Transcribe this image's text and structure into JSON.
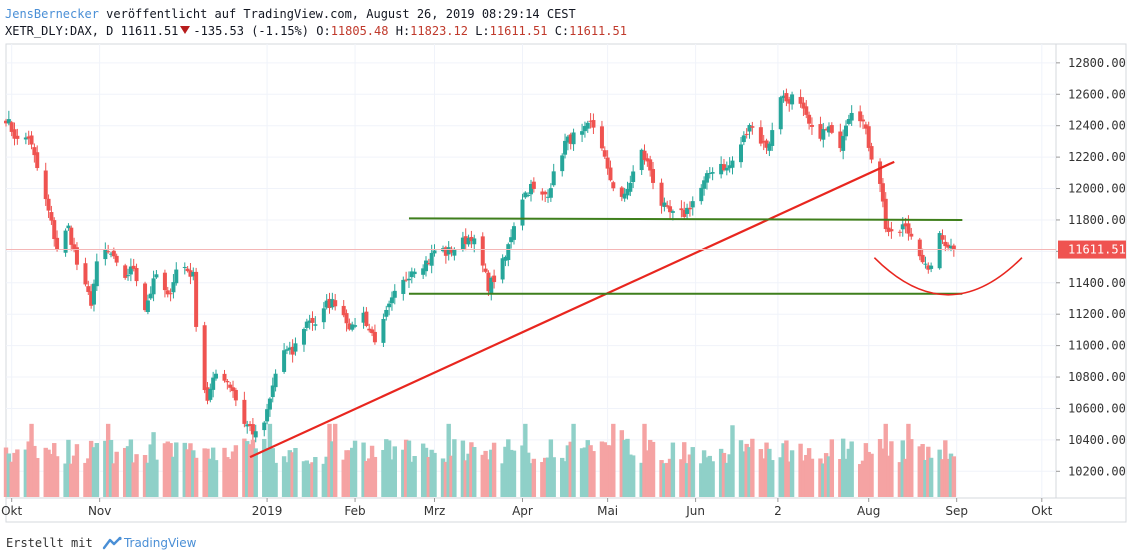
{
  "header": {
    "author": "JensBernecker",
    "publish_text": "veröffentlicht auf TradingView.com, August 26, 2019 08:29:14 CEST",
    "symbol": "XETR_DLY:DAX, D",
    "last": "11611.51",
    "change": "-135.53 (-1.15%)",
    "o_label": "O:",
    "o_value": "11805.48",
    "h_label": "H:",
    "h_value": "11823.12",
    "l_label": "L:",
    "l_value": "11611.51",
    "c_label": "C:",
    "c_value": "11611.51"
  },
  "footer": {
    "created_with": "Erstellt mit",
    "brand": "TradingView"
  },
  "colors": {
    "up": "#26a69a",
    "down": "#ef5350",
    "vol_up": "#8fd0c8",
    "vol_down": "#f5a3a3",
    "trend": "#e8261f",
    "support": "#3f7f1c",
    "price_line": "#f4b6b6",
    "price_tag": "#ef5350"
  },
  "chart_data": {
    "type": "candlestick",
    "symbol": "XETR_DLY:DAX",
    "interval": "D",
    "y_ticks": [
      "12800.00",
      "12600.00",
      "12400.00",
      "12200.00",
      "12000.00",
      "11800.00",
      "11600.00",
      "11400.00",
      "11200.00",
      "11000.00",
      "10800.00",
      "10600.00",
      "10400.00",
      "10200.00"
    ],
    "y_tick_values": [
      12800,
      12600,
      12400,
      12200,
      12000,
      11800,
      11600,
      11400,
      11200,
      11000,
      10800,
      10600,
      10400,
      10200
    ],
    "ylim": [
      10030,
      12920
    ],
    "x_labels": [
      "Okt",
      "Nov",
      "2019",
      "Feb",
      "Mrz",
      "Apr",
      "Mai",
      "Jun",
      "2",
      "Aug",
      "Sep",
      "Okt"
    ],
    "x_label_days": [
      2,
      33,
      92,
      123,
      151,
      182,
      212,
      243,
      272,
      304,
      335,
      365
    ],
    "xlim": [
      0,
      370
    ],
    "last_price": 11611.51,
    "last_price_label": "11611.51",
    "anchors": [
      [
        0,
        12450
      ],
      [
        4,
        12300
      ],
      [
        8,
        12330
      ],
      [
        12,
        12060
      ],
      [
        15,
        11850
      ],
      [
        18,
        11620
      ],
      [
        22,
        11750
      ],
      [
        26,
        11440
      ],
      [
        30,
        11280
      ],
      [
        33,
        11620
      ],
      [
        37,
        11580
      ],
      [
        41,
        11420
      ],
      [
        45,
        11500
      ],
      [
        49,
        11240
      ],
      [
        53,
        11450
      ],
      [
        57,
        11300
      ],
      [
        61,
        11540
      ],
      [
        66,
        11440
      ],
      [
        68,
        10860
      ],
      [
        71,
        10660
      ],
      [
        74,
        10820
      ],
      [
        77,
        10800
      ],
      [
        80,
        10720
      ],
      [
        83,
        10530
      ],
      [
        86,
        10480
      ],
      [
        89,
        10400
      ],
      [
        92,
        10570
      ],
      [
        95,
        10820
      ],
      [
        98,
        10970
      ],
      [
        101,
        10950
      ],
      [
        104,
        11100
      ],
      [
        107,
        11170
      ],
      [
        110,
        11130
      ],
      [
        113,
        11260
      ],
      [
        116,
        11280
      ],
      [
        119,
        11200
      ],
      [
        122,
        11100
      ],
      [
        125,
        11250
      ],
      [
        128,
        11100
      ],
      [
        131,
        11020
      ],
      [
        134,
        11200
      ],
      [
        137,
        11320
      ],
      [
        140,
        11400
      ],
      [
        143,
        11490
      ],
      [
        146,
        11520
      ],
      [
        149,
        11540
      ],
      [
        152,
        11640
      ],
      [
        155,
        11590
      ],
      [
        158,
        11620
      ],
      [
        161,
        11660
      ],
      [
        164,
        11700
      ],
      [
        167,
        11560
      ],
      [
        170,
        11380
      ],
      [
        173,
        11450
      ],
      [
        176,
        11560
      ],
      [
        179,
        11780
      ],
      [
        182,
        11950
      ],
      [
        185,
        12010
      ],
      [
        188,
        11930
      ],
      [
        191,
        11980
      ],
      [
        194,
        12130
      ],
      [
        197,
        12290
      ],
      [
        200,
        12330
      ],
      [
        203,
        12340
      ],
      [
        206,
        12410
      ],
      [
        209,
        12360
      ],
      [
        212,
        12100
      ],
      [
        215,
        11980
      ],
      [
        218,
        11940
      ],
      [
        221,
        12100
      ],
      [
        224,
        12230
      ],
      [
        227,
        12120
      ],
      [
        230,
        11930
      ],
      [
        233,
        11850
      ],
      [
        236,
        11820
      ],
      [
        239,
        11840
      ],
      [
        242,
        11920
      ],
      [
        245,
        12000
      ],
      [
        248,
        12100
      ],
      [
        251,
        12180
      ],
      [
        254,
        12120
      ],
      [
        257,
        12200
      ],
      [
        260,
        12320
      ],
      [
        263,
        12420
      ],
      [
        266,
        12300
      ],
      [
        269,
        12270
      ],
      [
        272,
        12620
      ],
      [
        275,
        12560
      ],
      [
        278,
        12590
      ],
      [
        281,
        12480
      ],
      [
        284,
        12360
      ],
      [
        287,
        12350
      ],
      [
        290,
        12380
      ],
      [
        293,
        12220
      ],
      [
        296,
        12430
      ],
      [
        299,
        12550
      ],
      [
        302,
        12420
      ],
      [
        305,
        12210
      ],
      [
        308,
        12050
      ],
      [
        310,
        11760
      ],
      [
        313,
        11660
      ],
      [
        316,
        11760
      ],
      [
        319,
        11700
      ],
      [
        322,
        11600
      ],
      [
        325,
        11450
      ],
      [
        328,
        11700
      ],
      [
        331,
        11660
      ],
      [
        334,
        11611.51
      ]
    ],
    "volume_scale": "relative",
    "annotations": {
      "trendline": {
        "x1": 86,
        "y1": 10290,
        "x2": 313,
        "y2": 12170
      },
      "resistance": {
        "x1": 142,
        "x2": 337,
        "y1": 11810,
        "y2": 11800
      },
      "support": {
        "x1": 142,
        "x2": 337,
        "y": 11330
      },
      "arc": {
        "from_x": 306,
        "from_y": 11560,
        "to_x": 358,
        "to_y": 11560,
        "bottom_y": 11330
      }
    },
    "grid": true,
    "legend": "none"
  }
}
